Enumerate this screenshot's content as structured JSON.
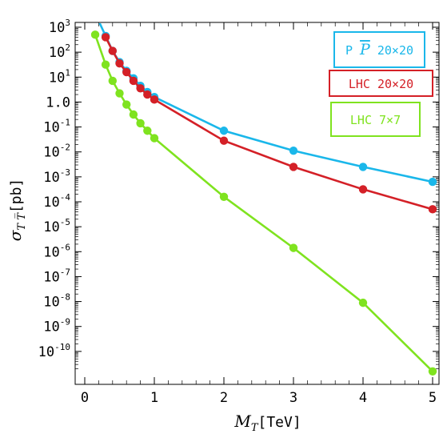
{
  "chart_data": {
    "type": "line",
    "title": "",
    "xlabel_main": "M",
    "xlabel_sub": "T",
    "xlabel_unit": "[TeV]",
    "ylabel_main": "σ",
    "ylabel_sub": "T T̅",
    "ylabel_unit": "[pb]",
    "xlim": [
      0,
      5
    ],
    "ylim_log10": [
      -11,
      3
    ],
    "yscale": "log",
    "x_ticks": [
      "0",
      "1",
      "2",
      "3",
      "4",
      "5"
    ],
    "y_ticks": [
      {
        "base": "10",
        "exp": "3"
      },
      {
        "base": "10",
        "exp": "2"
      },
      {
        "base": "10",
        "exp": "1"
      },
      {
        "base": "1.0",
        "exp": ""
      },
      {
        "base": "10",
        "exp": "-1"
      },
      {
        "base": "10",
        "exp": "-2"
      },
      {
        "base": "10",
        "exp": "-3"
      },
      {
        "base": "10",
        "exp": "-4"
      },
      {
        "base": "10",
        "exp": "-5"
      },
      {
        "base": "10",
        "exp": "-6"
      },
      {
        "base": "10",
        "exp": "-7"
      },
      {
        "base": "10",
        "exp": "-8"
      },
      {
        "base": "10",
        "exp": "-9"
      },
      {
        "base": "10",
        "exp": "-10"
      }
    ],
    "grid": false,
    "legend_position": "top-right",
    "series": [
      {
        "name": "P P̅ 20×20",
        "legend_parts": [
          "P ",
          "P",
          " 20×20"
        ],
        "color": "#1ab7ea",
        "x": [
          0.3,
          0.4,
          0.5,
          0.6,
          0.7,
          0.8,
          0.9,
          1.0,
          2.0,
          3.0,
          4.0,
          5.0
        ],
        "log10_y": [
          2.65,
          2.05,
          1.6,
          1.25,
          0.95,
          0.65,
          0.4,
          0.2,
          -1.15,
          -1.95,
          -2.6,
          -3.2
        ],
        "log10_y_line_start": 3.6
      },
      {
        "name": "LHC 20×20",
        "legend_parts": [
          "LHC 20×20"
        ],
        "color": "#d42027",
        "x": [
          0.3,
          0.4,
          0.5,
          0.6,
          0.7,
          0.8,
          0.9,
          1.0,
          2.0,
          3.0,
          4.0,
          5.0
        ],
        "log10_y": [
          2.6,
          2.05,
          1.55,
          1.2,
          0.85,
          0.55,
          0.3,
          0.1,
          -1.55,
          -2.6,
          -3.5,
          -4.3
        ]
      },
      {
        "name": "LHC 7×7",
        "legend_parts": [
          "LHC 7×7"
        ],
        "color": "#7fe31f",
        "x": [
          0.15,
          0.3,
          0.4,
          0.5,
          0.6,
          0.7,
          0.8,
          0.9,
          1.0,
          2.0,
          3.0,
          4.0,
          5.0
        ],
        "log10_y": [
          2.7,
          1.5,
          0.85,
          0.35,
          -0.1,
          -0.5,
          -0.85,
          -1.15,
          -1.45,
          -3.8,
          -5.85,
          -8.05,
          -10.8
        ]
      }
    ]
  }
}
